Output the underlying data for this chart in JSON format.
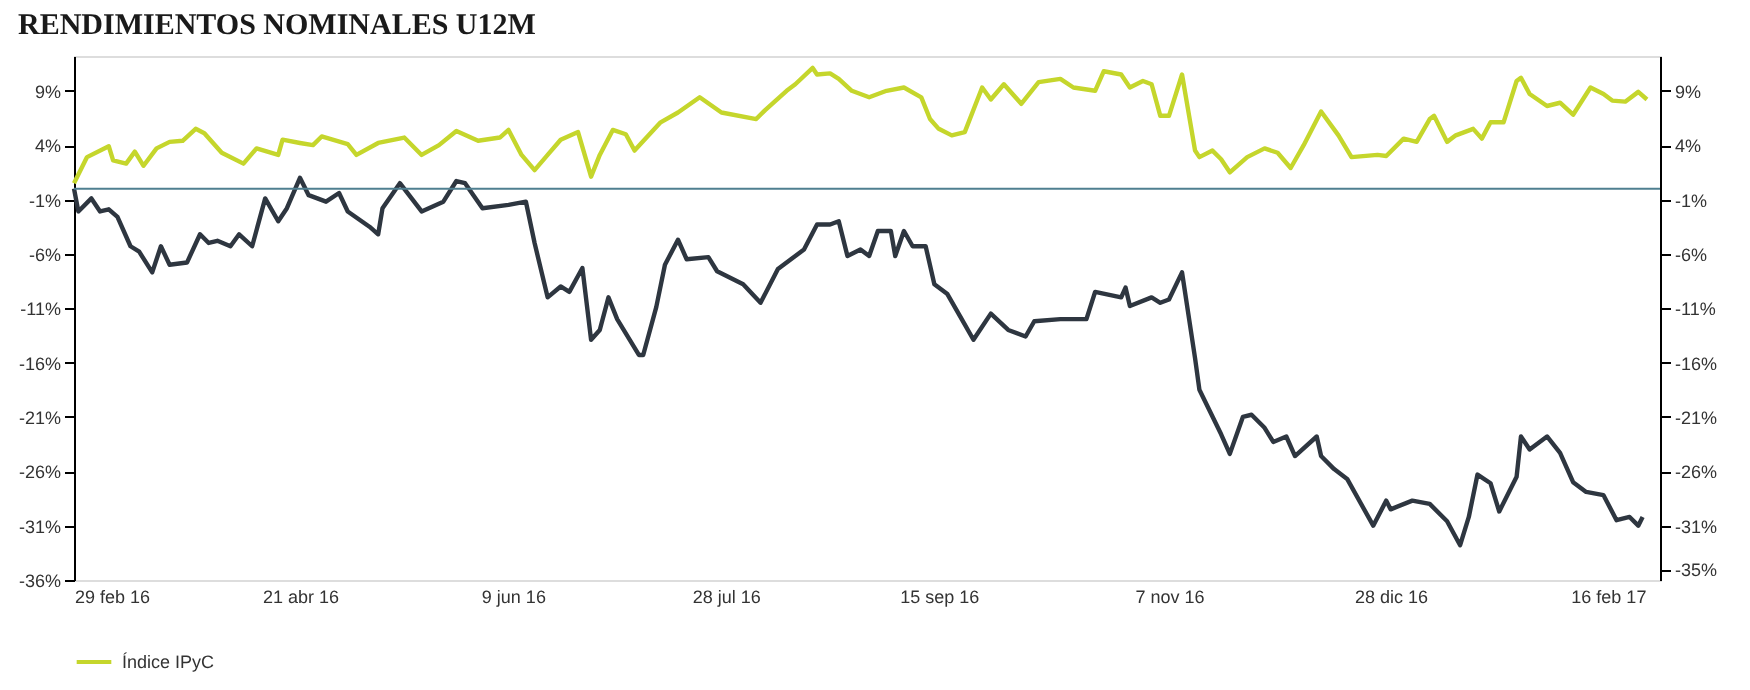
{
  "chart_data": {
    "type": "line",
    "title": "RENDIMIENTOS NOMINALES U12M",
    "xlim": [
      "2016-02-29",
      "2017-02-28"
    ],
    "xticks": [
      {
        "value": "2016-02-29",
        "label": "29 feb 16"
      },
      {
        "value": "2016-04-21",
        "label": "21 abr 16"
      },
      {
        "value": "2016-06-09",
        "label": "9 jun 16"
      },
      {
        "value": "2016-07-28",
        "label": "28 jul 16"
      },
      {
        "value": "2016-09-15",
        "label": "15 sep 16"
      },
      {
        "value": "2016-11-07",
        "label": "7 nov 16"
      },
      {
        "value": "2016-12-28",
        "label": "28 dic 16"
      },
      {
        "value": "2017-02-16",
        "label": "16 feb 17"
      }
    ],
    "ylim": [
      -36,
      12.2
    ],
    "yticks": [
      {
        "value": 9,
        "label": "9%"
      },
      {
        "value": 4,
        "label": "4%"
      },
      {
        "value": -1,
        "label": "-1%"
      },
      {
        "value": -6,
        "label": "-6%"
      },
      {
        "value": -11,
        "label": "-11%"
      },
      {
        "value": -16,
        "label": "-16%"
      },
      {
        "value": -21,
        "label": "-21%"
      },
      {
        "value": -26,
        "label": "-26%"
      },
      {
        "value": -31,
        "label": "-31%"
      },
      {
        "value": -36,
        "label": "-36%"
      }
    ],
    "y2lim": [
      -36,
      12.2
    ],
    "y2ticks": [
      {
        "value": 9,
        "label": "9%"
      },
      {
        "value": 4,
        "label": "4%"
      },
      {
        "value": -1,
        "label": "-1%"
      },
      {
        "value": -6,
        "label": "-6%"
      },
      {
        "value": -11,
        "label": "-11%"
      },
      {
        "value": -16,
        "label": "-16%"
      },
      {
        "value": -21,
        "label": "-21%"
      },
      {
        "value": -26,
        "label": "-26%"
      },
      {
        "value": -31,
        "label": "-31%"
      },
      {
        "value": -35,
        "label": "-35%"
      }
    ],
    "ref_lines": [
      {
        "axis": "y2",
        "value": 0,
        "color": "#4f7f90"
      }
    ],
    "legend": "bottom",
    "grid": false,
    "marker": "none",
    "line_style": "solid",
    "series": [
      {
        "name": "Índice IPyC",
        "color": "#c5d62c",
        "x": [
          "2016-02-29",
          "2016-03-03",
          "2016-03-08",
          "2016-03-09",
          "2016-03-12",
          "2016-03-14",
          "2016-03-16",
          "2016-03-19",
          "2016-03-22",
          "2016-03-25",
          "2016-03-28",
          "2016-03-30",
          "2016-04-03",
          "2016-04-08",
          "2016-04-11",
          "2016-04-16",
          "2016-04-17",
          "2016-04-21",
          "2016-04-24",
          "2016-04-26",
          "2016-05-02",
          "2016-05-04",
          "2016-05-09",
          "2016-05-15",
          "2016-05-19",
          "2016-05-23",
          "2016-05-27",
          "2016-06-01",
          "2016-06-06",
          "2016-06-08",
          "2016-06-11",
          "2016-06-14",
          "2016-06-17",
          "2016-06-20",
          "2016-06-24",
          "2016-06-27",
          "2016-06-29",
          "2016-07-02",
          "2016-07-05",
          "2016-07-07",
          "2016-07-13",
          "2016-07-17",
          "2016-07-22",
          "2016-07-27",
          "2016-08-04",
          "2016-08-06",
          "2016-08-11",
          "2016-08-13",
          "2016-08-17",
          "2016-08-18",
          "2016-08-21",
          "2016-08-23",
          "2016-08-26",
          "2016-08-30",
          "2016-09-03",
          "2016-09-07",
          "2016-09-11",
          "2016-09-13",
          "2016-09-15",
          "2016-09-18",
          "2016-09-21",
          "2016-09-25",
          "2016-09-27",
          "2016-09-30",
          "2016-10-04",
          "2016-10-08",
          "2016-10-13",
          "2016-10-16",
          "2016-10-21",
          "2016-10-23",
          "2016-10-27",
          "2016-10-29",
          "2016-11-01",
          "2016-11-03",
          "2016-11-05",
          "2016-11-07",
          "2016-11-10",
          "2016-11-13",
          "2016-11-14",
          "2016-11-17",
          "2016-11-19",
          "2016-11-21",
          "2016-11-25",
          "2016-11-29",
          "2016-12-02",
          "2016-12-05",
          "2016-12-08",
          "2016-12-12",
          "2016-12-16",
          "2016-12-19",
          "2016-12-25",
          "2016-12-27",
          "2016-12-31",
          "2017-01-03",
          "2017-01-06",
          "2017-01-07",
          "2017-01-10",
          "2017-01-12",
          "2017-01-16",
          "2017-01-18",
          "2017-01-20",
          "2017-01-23",
          "2017-01-26",
          "2017-01-27",
          "2017-01-29",
          "2017-02-02",
          "2017-02-05",
          "2017-02-08",
          "2017-02-12",
          "2017-02-15",
          "2017-02-17",
          "2017-02-20",
          "2017-02-23",
          "2017-02-25"
        ],
        "values": [
          0.5,
          2.9,
          3.9,
          2.6,
          2.3,
          3.4,
          2.1,
          3.7,
          4.3,
          4.4,
          5.5,
          5.1,
          3.3,
          2.3,
          3.7,
          3.1,
          4.5,
          4.2,
          4.0,
          4.8,
          4.1,
          3.1,
          4.2,
          4.7,
          3.1,
          4.0,
          5.3,
          4.4,
          4.7,
          5.4,
          3.1,
          1.7,
          3.1,
          4.5,
          5.2,
          1.1,
          3.1,
          5.4,
          5.0,
          3.5,
          6.1,
          7.0,
          8.4,
          7.0,
          6.4,
          7.2,
          9.0,
          9.6,
          11.1,
          10.5,
          10.6,
          10.1,
          9.0,
          8.4,
          9.0,
          9.3,
          8.4,
          6.4,
          5.5,
          4.9,
          5.2,
          9.3,
          8.2,
          9.6,
          7.8,
          9.8,
          10.1,
          9.3,
          9.0,
          10.8,
          10.5,
          9.3,
          9.9,
          9.6,
          6.7,
          6.7,
          10.5,
          3.5,
          2.9,
          3.5,
          2.7,
          1.5,
          2.9,
          3.7,
          3.3,
          1.9,
          4.0,
          7.1,
          4.9,
          2.9,
          3.1,
          3.0,
          4.6,
          4.3,
          6.4,
          6.7,
          4.3,
          4.9,
          5.5,
          4.6,
          6.1,
          6.1,
          9.9,
          10.2,
          8.7,
          7.6,
          7.9,
          6.8,
          9.3,
          8.7,
          8.1,
          8.0,
          8.9,
          8.2
        ]
      },
      {
        "color": "#2e3640",
        "x": [
          "2016-02-29",
          "2016-03-01",
          "2016-03-04",
          "2016-03-06",
          "2016-03-08",
          "2016-03-10",
          "2016-03-13",
          "2016-03-15",
          "2016-03-18",
          "2016-03-20",
          "2016-03-22",
          "2016-03-26",
          "2016-03-29",
          "2016-03-31",
          "2016-04-02",
          "2016-04-05",
          "2016-04-07",
          "2016-04-10",
          "2016-04-13",
          "2016-04-16",
          "2016-04-18",
          "2016-04-21",
          "2016-04-23",
          "2016-04-27",
          "2016-04-30",
          "2016-05-02",
          "2016-05-07",
          "2016-05-09",
          "2016-05-10",
          "2016-05-14",
          "2016-05-19",
          "2016-05-24",
          "2016-05-27",
          "2016-05-29",
          "2016-06-02",
          "2016-06-08",
          "2016-06-12",
          "2016-06-14",
          "2016-06-17",
          "2016-06-20",
          "2016-06-22",
          "2016-06-25",
          "2016-06-27",
          "2016-06-29",
          "2016-07-01",
          "2016-07-03",
          "2016-07-08",
          "2016-07-09",
          "2016-07-12",
          "2016-07-14",
          "2016-07-17",
          "2016-07-19",
          "2016-07-24",
          "2016-07-26",
          "2016-08-01",
          "2016-08-05",
          "2016-08-09",
          "2016-08-12",
          "2016-08-15",
          "2016-08-18",
          "2016-08-21",
          "2016-08-23",
          "2016-08-25",
          "2016-08-28",
          "2016-08-30",
          "2016-09-01",
          "2016-09-04",
          "2016-09-05",
          "2016-09-07",
          "2016-09-09",
          "2016-09-12",
          "2016-09-14",
          "2016-09-17",
          "2016-09-20",
          "2016-09-23",
          "2016-09-27",
          "2016-10-01",
          "2016-10-05",
          "2016-10-07",
          "2016-10-13",
          "2016-10-19",
          "2016-10-21",
          "2016-10-27",
          "2016-10-28",
          "2016-10-29",
          "2016-11-03",
          "2016-11-05",
          "2016-11-07",
          "2016-11-10",
          "2016-11-13",
          "2016-11-14",
          "2016-11-19",
          "2016-11-21",
          "2016-11-24",
          "2016-11-26",
          "2016-11-29",
          "2016-12-01",
          "2016-12-04",
          "2016-12-06",
          "2016-12-11",
          "2016-12-12",
          "2016-12-15",
          "2016-12-18",
          "2016-12-24",
          "2016-12-27",
          "2016-12-28",
          "2017-01-02",
          "2017-01-06",
          "2017-01-10",
          "2017-01-13",
          "2017-01-15",
          "2017-01-17",
          "2017-01-20",
          "2017-01-22",
          "2017-01-26",
          "2017-01-27",
          "2017-01-29",
          "2017-02-02",
          "2017-02-05",
          "2017-02-08",
          "2017-02-11",
          "2017-02-15",
          "2017-02-18",
          "2017-02-21",
          "2017-02-23",
          "2017-02-24"
        ],
        "values": [
          0,
          -2.1,
          -0.9,
          -2.1,
          -1.9,
          -2.6,
          -5.3,
          -5.8,
          -7.7,
          -5.3,
          -7,
          -6.8,
          -4.2,
          -5,
          -4.8,
          -5.3,
          -4.2,
          -5.3,
          -0.9,
          -3,
          -1.8,
          1.0,
          -0.6,
          -1.2,
          -0.4,
          -2.1,
          -3.5,
          -4.2,
          -1.8,
          0.5,
          -2.1,
          -1.2,
          0.7,
          0.5,
          -1.8,
          -1.5,
          -1.2,
          -5,
          -10,
          -9,
          -9.5,
          -7.3,
          -13.9,
          -13,
          -10,
          -12,
          -15.3,
          -15.3,
          -10.9,
          -7,
          -4.7,
          -6.5,
          -6.3,
          -7.6,
          -8.8,
          -10.5,
          -7.4,
          -6.5,
          -5.6,
          -3.3,
          -3.3,
          -3.0,
          -6.2,
          -5.6,
          -6.2,
          -3.9,
          -3.9,
          -6.2,
          -3.9,
          -5.3,
          -5.3,
          -8.8,
          -9.7,
          -11.8,
          -13.9,
          -11.5,
          -13,
          -13.6,
          -12.2,
          -12,
          -12,
          -9.5,
          -10,
          -9.1,
          -10.8,
          -10,
          -10.5,
          -10.2,
          -7.7,
          -15.6,
          -18.5,
          -22.6,
          -24.4,
          -21,
          -20.8,
          -22,
          -23.3,
          -22.8,
          -24.6,
          -22.8,
          -24.6,
          -25.8,
          -26.7,
          -31,
          -28.7,
          -29.5,
          -28.7,
          -29,
          -30.6,
          -32.8,
          -30.2,
          -26.3,
          -27.1,
          -29.7,
          -26.5,
          -22.8,
          -24,
          -22.8,
          -24.3,
          -27,
          -27.9,
          -28.2,
          -30.5,
          -30.2,
          -31,
          -30.2
        ]
      }
    ]
  }
}
